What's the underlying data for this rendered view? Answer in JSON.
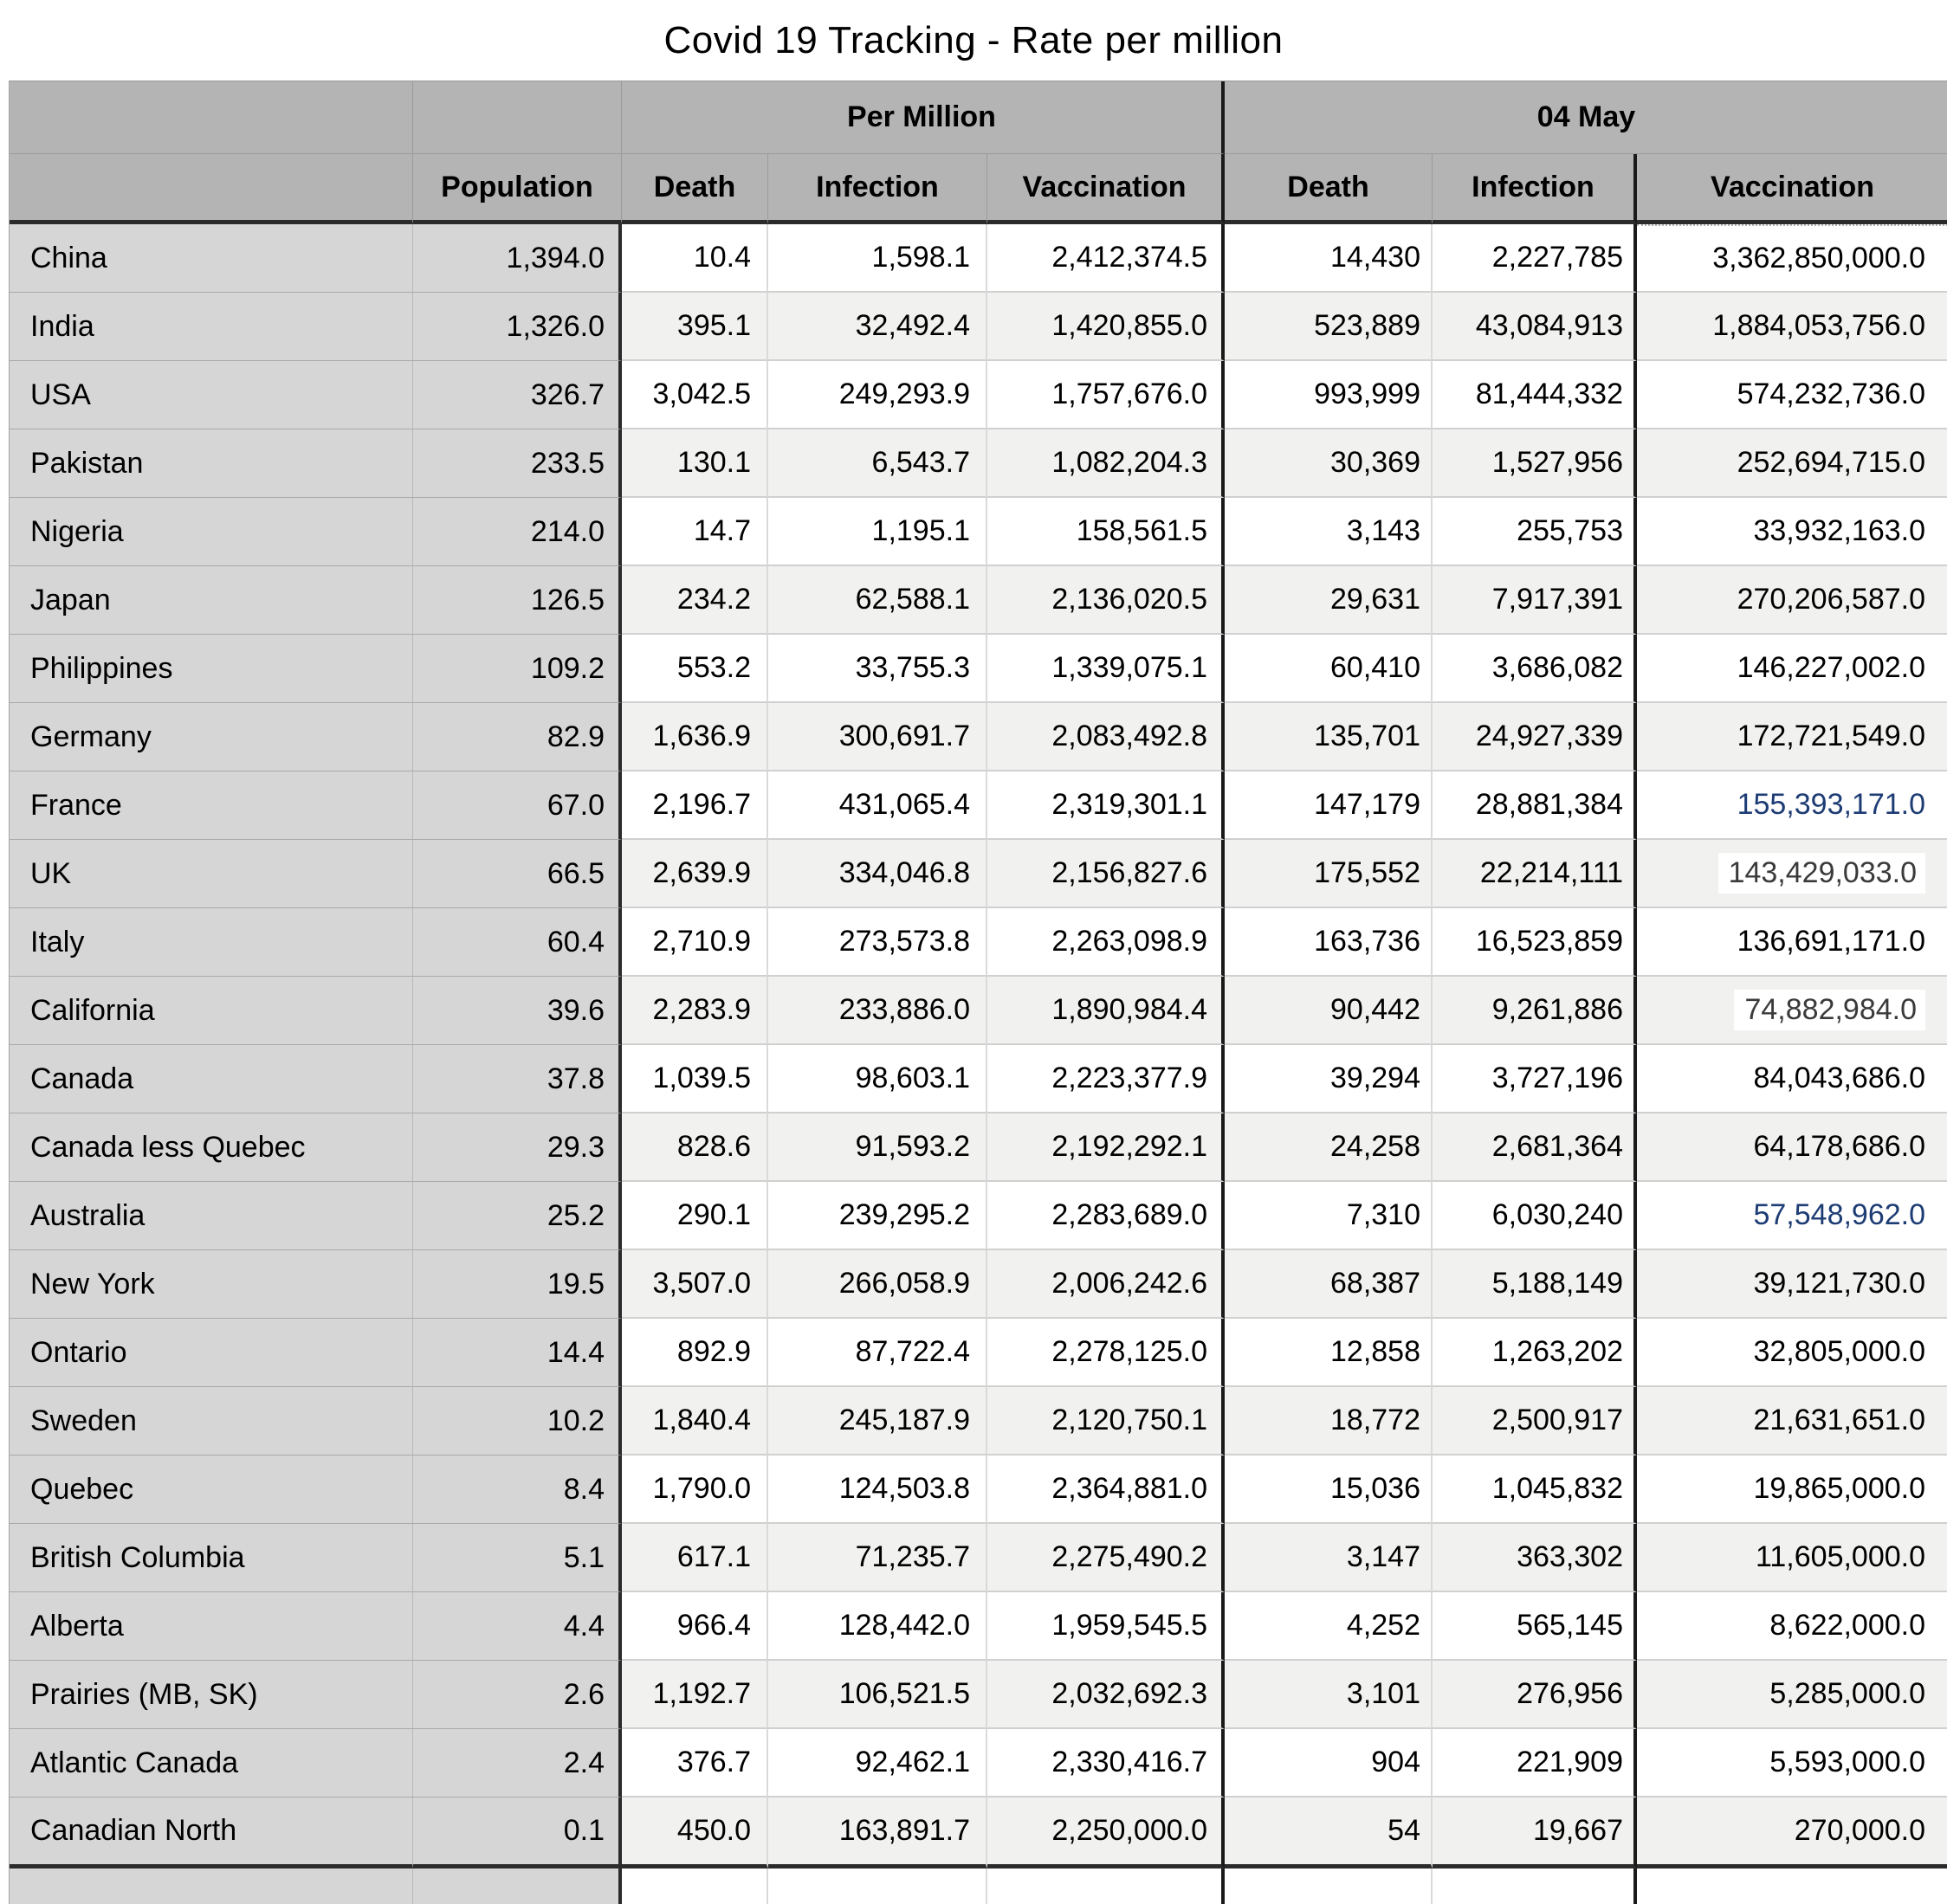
{
  "title": "Covid 19 Tracking - Rate per million",
  "colors": {
    "blue_value_text": "#1d3c74",
    "header_background": "#b4b4b4",
    "label_column_background": "#d6d6d6",
    "stripe_row_background": "#f1f1f0"
  },
  "table": {
    "group_headers": {
      "per_million": "Per Million",
      "date": "04 May"
    },
    "column_headers": {
      "population": "Population",
      "pm_death": "Death",
      "pm_infection": "Infection",
      "pm_vaccination": "Vaccination",
      "may_death": "Death",
      "may_infection": "Infection",
      "may_vaccination": "Vaccination"
    },
    "rows": [
      {
        "name": "China",
        "population": "1,394.0",
        "pm_death": "10.4",
        "pm_infection": "1,598.1",
        "pm_vaccination": "2,412,374.5",
        "may_death": "14,430",
        "may_infection": "2,227,785",
        "may_vaccination": "3,362,850,000.0"
      },
      {
        "name": "India",
        "population": "1,326.0",
        "pm_death": "395.1",
        "pm_infection": "32,492.4",
        "pm_vaccination": "1,420,855.0",
        "may_death": "523,889",
        "may_infection": "43,084,913",
        "may_vaccination": "1,884,053,756.0"
      },
      {
        "name": "USA",
        "population": "326.7",
        "pm_death": "3,042.5",
        "pm_infection": "249,293.9",
        "pm_vaccination": "1,757,676.0",
        "may_death": "993,999",
        "may_infection": "81,444,332",
        "may_vaccination": "574,232,736.0"
      },
      {
        "name": "Pakistan",
        "population": "233.5",
        "pm_death": "130.1",
        "pm_infection": "6,543.7",
        "pm_vaccination": "1,082,204.3",
        "may_death": "30,369",
        "may_infection": "1,527,956",
        "may_vaccination": "252,694,715.0"
      },
      {
        "name": "Nigeria",
        "population": "214.0",
        "pm_death": "14.7",
        "pm_infection": "1,195.1",
        "pm_vaccination": "158,561.5",
        "may_death": "3,143",
        "may_infection": "255,753",
        "may_vaccination": "33,932,163.0"
      },
      {
        "name": "Japan",
        "population": "126.5",
        "pm_death": "234.2",
        "pm_infection": "62,588.1",
        "pm_vaccination": "2,136,020.5",
        "may_death": "29,631",
        "may_infection": "7,917,391",
        "may_vaccination": "270,206,587.0"
      },
      {
        "name": "Philippines",
        "population": "109.2",
        "pm_death": "553.2",
        "pm_infection": "33,755.3",
        "pm_vaccination": "1,339,075.1",
        "may_death": "60,410",
        "may_infection": "3,686,082",
        "may_vaccination": "146,227,002.0"
      },
      {
        "name": "Germany",
        "population": "82.9",
        "pm_death": "1,636.9",
        "pm_infection": "300,691.7",
        "pm_vaccination": "2,083,492.8",
        "may_death": "135,701",
        "may_infection": "24,927,339",
        "may_vaccination": "172,721,549.0"
      },
      {
        "name": "France",
        "population": "67.0",
        "pm_death": "2,196.7",
        "pm_infection": "431,065.4",
        "pm_vaccination": "2,319,301.1",
        "may_death": "147,179",
        "may_infection": "28,881,384",
        "may_vaccination": "155,393,171.0",
        "may_vaccination_style": "blue"
      },
      {
        "name": "UK",
        "population": "66.5",
        "pm_death": "2,639.9",
        "pm_infection": "334,046.8",
        "pm_vaccination": "2,156,827.6",
        "may_death": "175,552",
        "may_infection": "22,214,111",
        "may_vaccination": "143,429,033.0",
        "may_vaccination_style": "highlight"
      },
      {
        "name": "Italy",
        "population": "60.4",
        "pm_death": "2,710.9",
        "pm_infection": "273,573.8",
        "pm_vaccination": "2,263,098.9",
        "may_death": "163,736",
        "may_infection": "16,523,859",
        "may_vaccination": "136,691,171.0"
      },
      {
        "name": "California",
        "population": "39.6",
        "pm_death": "2,283.9",
        "pm_infection": "233,886.0",
        "pm_vaccination": "1,890,984.4",
        "may_death": "90,442",
        "may_infection": "9,261,886",
        "may_vaccination": "74,882,984.0",
        "may_vaccination_style": "highlight"
      },
      {
        "name": "Canada",
        "population": "37.8",
        "pm_death": "1,039.5",
        "pm_infection": "98,603.1",
        "pm_vaccination": "2,223,377.9",
        "may_death": "39,294",
        "may_infection": "3,727,196",
        "may_vaccination": "84,043,686.0"
      },
      {
        "name": "Canada less Quebec",
        "population": "29.3",
        "pm_death": "828.6",
        "pm_infection": "91,593.2",
        "pm_vaccination": "2,192,292.1",
        "may_death": "24,258",
        "may_infection": "2,681,364",
        "may_vaccination": "64,178,686.0"
      },
      {
        "name": "Australia",
        "population": "25.2",
        "pm_death": "290.1",
        "pm_infection": "239,295.2",
        "pm_vaccination": "2,283,689.0",
        "may_death": "7,310",
        "may_infection": "6,030,240",
        "may_vaccination": "57,548,962.0",
        "may_vaccination_style": "blue"
      },
      {
        "name": "New York",
        "population": "19.5",
        "pm_death": "3,507.0",
        "pm_infection": "266,058.9",
        "pm_vaccination": "2,006,242.6",
        "may_death": "68,387",
        "may_infection": "5,188,149",
        "may_vaccination": "39,121,730.0"
      },
      {
        "name": "Ontario",
        "population": "14.4",
        "pm_death": "892.9",
        "pm_infection": "87,722.4",
        "pm_vaccination": "2,278,125.0",
        "may_death": "12,858",
        "may_infection": "1,263,202",
        "may_vaccination": "32,805,000.0"
      },
      {
        "name": "Sweden",
        "population": "10.2",
        "pm_death": "1,840.4",
        "pm_infection": "245,187.9",
        "pm_vaccination": "2,120,750.1",
        "may_death": "18,772",
        "may_infection": "2,500,917",
        "may_vaccination": "21,631,651.0"
      },
      {
        "name": "Quebec",
        "population": "8.4",
        "pm_death": "1,790.0",
        "pm_infection": "124,503.8",
        "pm_vaccination": "2,364,881.0",
        "may_death": "15,036",
        "may_infection": "1,045,832",
        "may_vaccination": "19,865,000.0"
      },
      {
        "name": "British Columbia",
        "population": "5.1",
        "pm_death": "617.1",
        "pm_infection": "71,235.7",
        "pm_vaccination": "2,275,490.2",
        "may_death": "3,147",
        "may_infection": "363,302",
        "may_vaccination": "11,605,000.0"
      },
      {
        "name": "Alberta",
        "population": "4.4",
        "pm_death": "966.4",
        "pm_infection": "128,442.0",
        "pm_vaccination": "1,959,545.5",
        "may_death": "4,252",
        "may_infection": "565,145",
        "may_vaccination": "8,622,000.0"
      },
      {
        "name": "Prairies (MB, SK)",
        "population": "2.6",
        "pm_death": "1,192.7",
        "pm_infection": "106,521.5",
        "pm_vaccination": "2,032,692.3",
        "may_death": "3,101",
        "may_infection": "276,956",
        "may_vaccination": "5,285,000.0"
      },
      {
        "name": "Atlantic Canada",
        "population": "2.4",
        "pm_death": "376.7",
        "pm_infection": "92,462.1",
        "pm_vaccination": "2,330,416.7",
        "may_death": "904",
        "may_infection": "221,909",
        "may_vaccination": "5,593,000.0"
      },
      {
        "name": "Canadian North",
        "population": "0.1",
        "pm_death": "450.0",
        "pm_infection": "163,891.7",
        "pm_vaccination": "2,250,000.0",
        "may_death": "54",
        "may_infection": "19,667",
        "may_vaccination": "270,000.0"
      }
    ]
  }
}
